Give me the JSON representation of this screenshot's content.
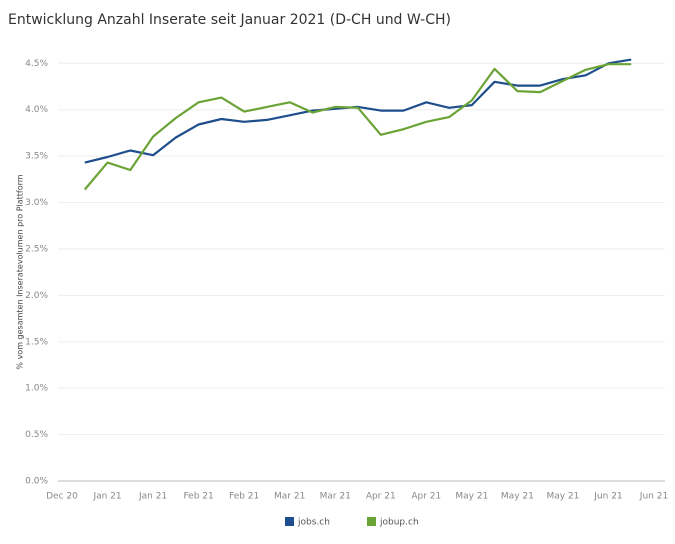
{
  "chart_data": {
    "type": "line",
    "title": "Entwicklung Anzahl Inserate seit Januar 2021 (D-CH und W-CH)",
    "y_label": "% vom gesamten Inseratevolumen pro Plattform",
    "categories": [
      "Dec 20",
      null,
      "Jan 21",
      null,
      "Jan 21",
      null,
      "Feb 21",
      null,
      "Feb 21",
      null,
      "Mar 21",
      null,
      "Mar 21",
      null,
      "Apr 21",
      null,
      "Apr 21",
      null,
      "May 21",
      null,
      "May 21",
      null,
      "May 21",
      null,
      "Jun 21",
      null,
      "Jun 21"
    ],
    "series": [
      {
        "name": "jobs.ch",
        "color": "#1f4e8c",
        "values": [
          null,
          3.43,
          3.49,
          3.56,
          3.51,
          3.7,
          3.84,
          3.9,
          3.87,
          3.89,
          3.94,
          3.99,
          4.01,
          4.03,
          3.99,
          3.99,
          4.08,
          4.02,
          4.05,
          4.3,
          4.26,
          4.26,
          4.33,
          4.37,
          4.5,
          4.54,
          null
        ]
      },
      {
        "name": "jobup.ch",
        "color": "#6aa336",
        "values": [
          null,
          3.14,
          3.43,
          3.35,
          3.71,
          3.91,
          4.08,
          4.13,
          3.98,
          4.03,
          4.08,
          3.97,
          4.03,
          4.02,
          3.73,
          3.79,
          3.87,
          3.92,
          4.1,
          4.44,
          4.2,
          4.19,
          4.31,
          4.43,
          4.49,
          4.49,
          null
        ]
      }
    ],
    "ylim": [
      0,
      4.6
    ],
    "yticks": [
      {
        "value": 0,
        "label": "0.0%"
      },
      {
        "value": 0.5,
        "label": "0.5%"
      },
      {
        "value": 1,
        "label": "1.0%"
      },
      {
        "value": 1.5,
        "label": "1.5%"
      },
      {
        "value": 2,
        "label": "2.0%"
      },
      {
        "value": 2.5,
        "label": "2.5%"
      },
      {
        "value": 3,
        "label": "3.0%"
      },
      {
        "value": 3.5,
        "label": "3.5%"
      },
      {
        "value": 4,
        "label": "4.0%"
      },
      {
        "value": 4.5,
        "label": "4.5%"
      }
    ],
    "grid": true,
    "legend": "bottom"
  }
}
